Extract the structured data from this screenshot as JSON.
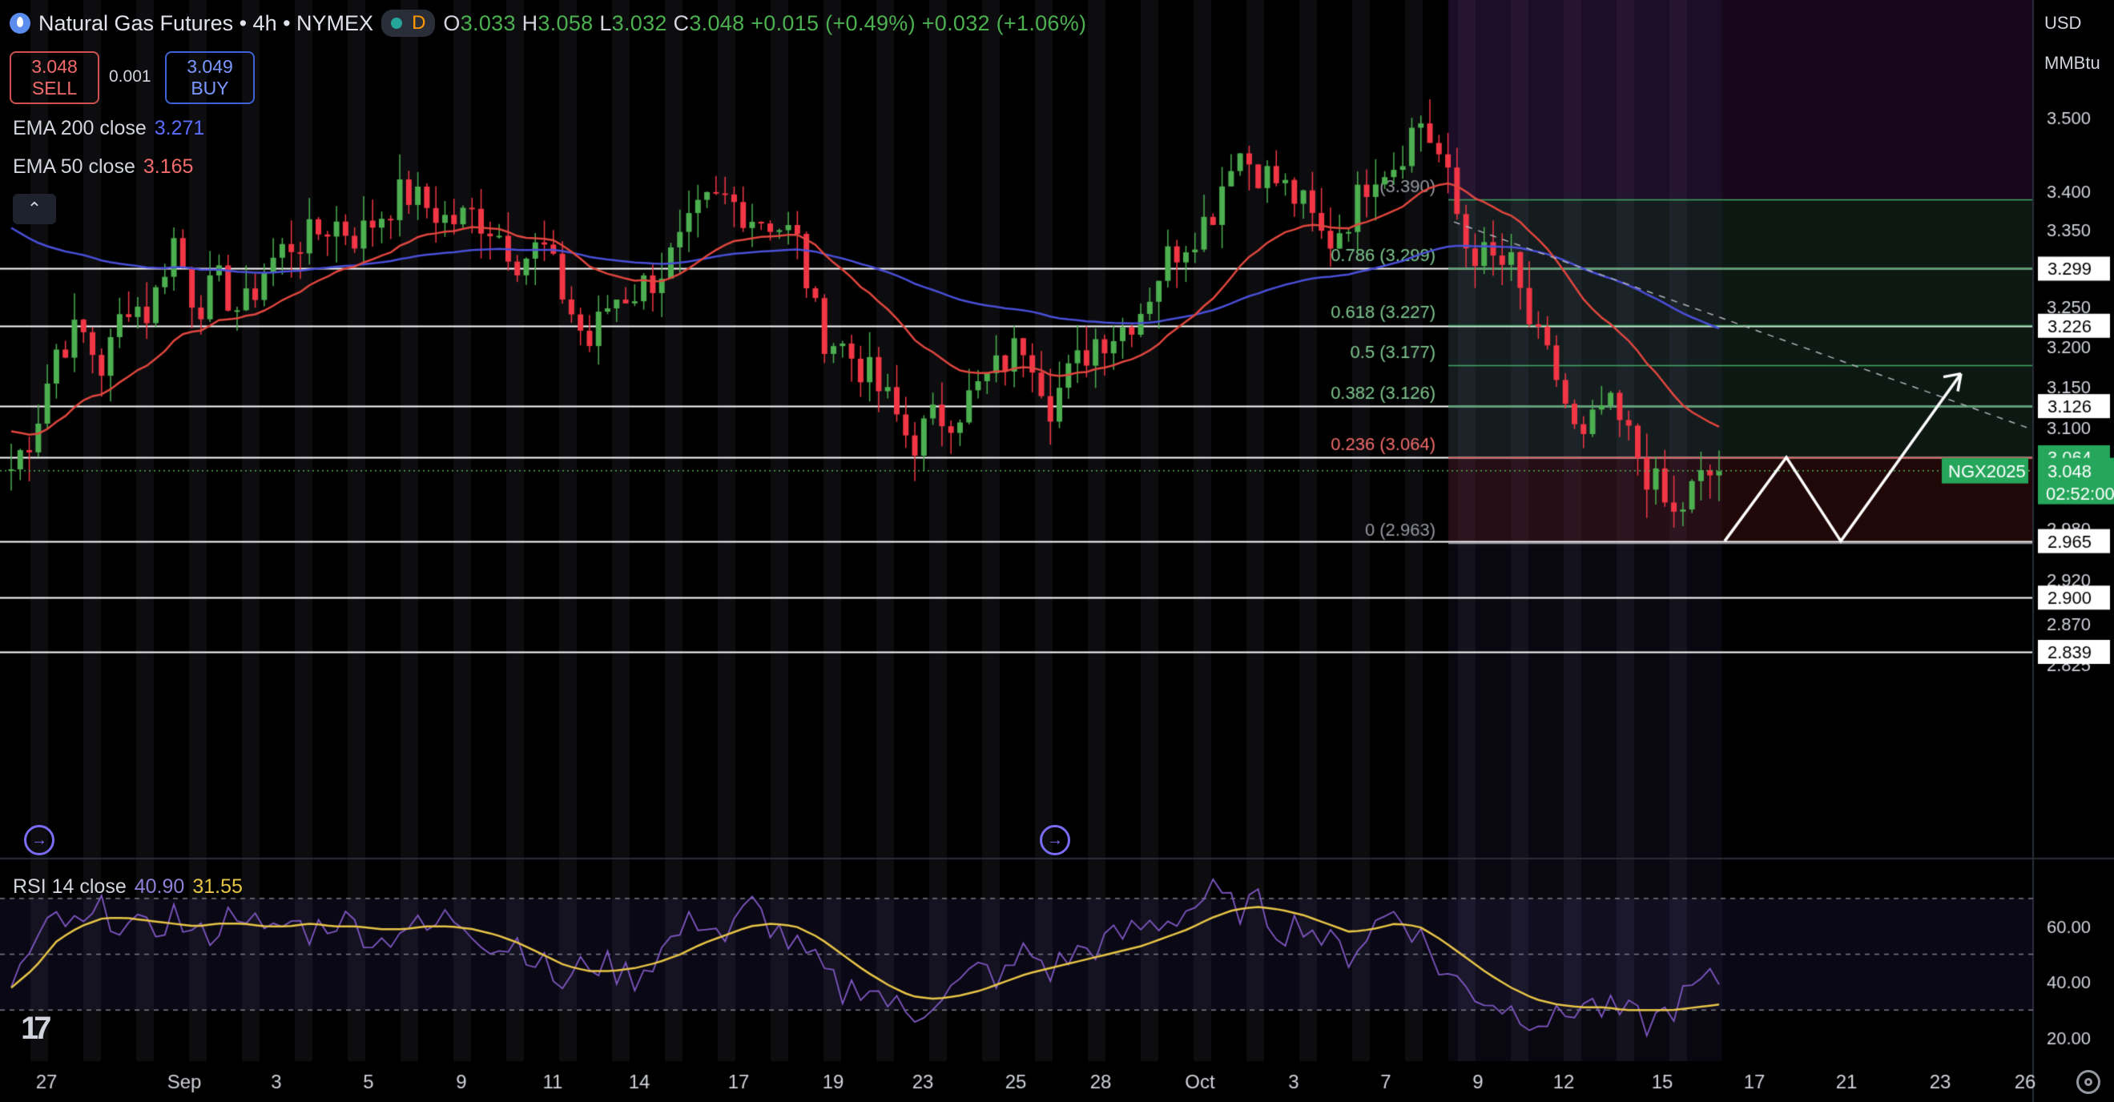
{
  "header": {
    "title": "Natural Gas Futures • 4h • NYMEX",
    "market_status": "D",
    "ohlc_prefix": [
      "O",
      "H",
      "L",
      "C"
    ],
    "open": "3.033",
    "high": "3.058",
    "low": "3.032",
    "close": "3.048",
    "change": "+0.015 (+0.49%)",
    "change2": "+0.032 (+1.06%)"
  },
  "trade": {
    "sell_price": "3.048",
    "sell_label": "SELL",
    "buy_price": "3.049",
    "buy_label": "BUY",
    "spread": "0.001"
  },
  "indicators": {
    "ema200_label": "EMA 200 close",
    "ema200_value": "3.271",
    "ema50_label": "EMA 50 close",
    "ema50_value": "3.165",
    "rsi_label": "RSI 14 close",
    "rsi_value": "40.90",
    "rsi_ma_value": "31.55"
  },
  "axis": {
    "currency": "USD",
    "unit": "MMBtu"
  },
  "colors": {
    "up": "#4caf50",
    "down": "#f23645",
    "ema200": "#4a4fd8",
    "ema50": "#e0463e",
    "rsi": "#7e57c2",
    "rsi_ma": "#e8c547",
    "fib": "#42a866",
    "hline": "#ffffff"
  },
  "chart_data": {
    "type": "candlestick",
    "symbol_label": "NGX2025",
    "countdown": "02:52:00",
    "last_price": 3.048,
    "y_range": [
      2.812,
      3.655
    ],
    "scale": "log",
    "y_ticks": [
      "3.500",
      "3.400",
      "3.350",
      "3.250",
      "3.200",
      "3.150",
      "3.100",
      "2.980",
      "2.920",
      "2.870",
      "2.825"
    ],
    "x_ticks": [
      "27",
      "Sep",
      "3",
      "5",
      "9",
      "11",
      "14",
      "17",
      "19",
      "23",
      "25",
      "28",
      "Oct",
      "3",
      "7",
      "9",
      "12",
      "15",
      "17",
      "21",
      "23",
      "26"
    ],
    "horizontal_levels": [
      3.299,
      3.226,
      3.126,
      3.064,
      2.965,
      2.9,
      2.839
    ],
    "horizontal_level_labels": [
      "3.299",
      "3.226",
      "3.126",
      "3.064",
      "2.965",
      "2.900",
      "2.839"
    ],
    "fibonacci": [
      {
        "ratio": "1",
        "label": "(3.390)",
        "value": 3.39
      },
      {
        "ratio": "0.786",
        "label": "0.786 (3.299)",
        "value": 3.299
      },
      {
        "ratio": "0.618",
        "label": "0.618 (3.227)",
        "value": 3.227
      },
      {
        "ratio": "0.5",
        "label": "0.5 (3.177)",
        "value": 3.177
      },
      {
        "ratio": "0.382",
        "label": "0.382 (3.126)",
        "value": 3.126
      },
      {
        "ratio": "0.236",
        "label": "0.236 (3.064)",
        "value": 3.064
      },
      {
        "ratio": "0",
        "label": "0 (2.963)",
        "value": 2.963
      }
    ],
    "close_path": [
      3.05,
      3.1,
      3.2,
      3.22,
      3.17,
      3.26,
      3.24,
      3.34,
      3.25,
      3.28,
      3.24,
      3.3,
      3.33,
      3.34,
      3.36,
      3.34,
      3.37,
      3.4,
      3.38,
      3.36,
      3.37,
      3.35,
      3.31,
      3.33,
      3.26,
      3.2,
      3.26,
      3.27,
      3.29,
      3.33,
      3.38,
      3.39,
      3.37,
      3.36,
      3.34,
      3.22,
      3.2,
      3.17,
      3.13,
      3.08,
      3.11,
      3.12,
      3.15,
      3.18,
      3.21,
      3.13,
      3.17,
      3.21,
      3.22,
      3.25,
      3.31,
      3.34,
      3.37,
      3.46,
      3.43,
      3.41,
      3.38,
      3.33,
      3.37,
      3.43,
      3.44,
      3.5,
      3.44,
      3.33,
      3.31,
      3.3,
      3.21,
      3.16,
      3.07,
      3.13,
      3.09,
      3.04,
      2.99,
      3.03,
      3.05
    ],
    "rsi": {
      "y_ticks": [
        "60.00",
        "40.00",
        "20.00"
      ],
      "y_range": [
        14,
        80
      ],
      "levels": [
        70,
        50,
        30
      ],
      "values": [
        40,
        52,
        63,
        58,
        66,
        60,
        57,
        65,
        55,
        60,
        68,
        55,
        62,
        58,
        63,
        60,
        54,
        61,
        58,
        64,
        60,
        52,
        55,
        46,
        38,
        48,
        45,
        42,
        50,
        58,
        64,
        55,
        68,
        60,
        52,
        45,
        36,
        40,
        33,
        27,
        35,
        38,
        45,
        41,
        52,
        44,
        50,
        53,
        56,
        60,
        62,
        66,
        72,
        66,
        68,
        58,
        62,
        54,
        50,
        60,
        66,
        57,
        44,
        38,
        34,
        30,
        28,
        26,
        33,
        30,
        28,
        25,
        31,
        38,
        41
      ],
      "ma_values": [
        38,
        45,
        55,
        60,
        63,
        63,
        62,
        61,
        60,
        61,
        61,
        60,
        60,
        61,
        60,
        60,
        59,
        59,
        60,
        60,
        59,
        57,
        54,
        50,
        46,
        44,
        44,
        45,
        47,
        50,
        54,
        57,
        60,
        61,
        60,
        56,
        50,
        44,
        39,
        35,
        34,
        35,
        37,
        40,
        43,
        45,
        47,
        49,
        51,
        53,
        56,
        59,
        63,
        66,
        67,
        66,
        64,
        61,
        58,
        59,
        61,
        60,
        55,
        49,
        43,
        38,
        34,
        32,
        31,
        31,
        30,
        30,
        30,
        31,
        32
      ]
    }
  }
}
